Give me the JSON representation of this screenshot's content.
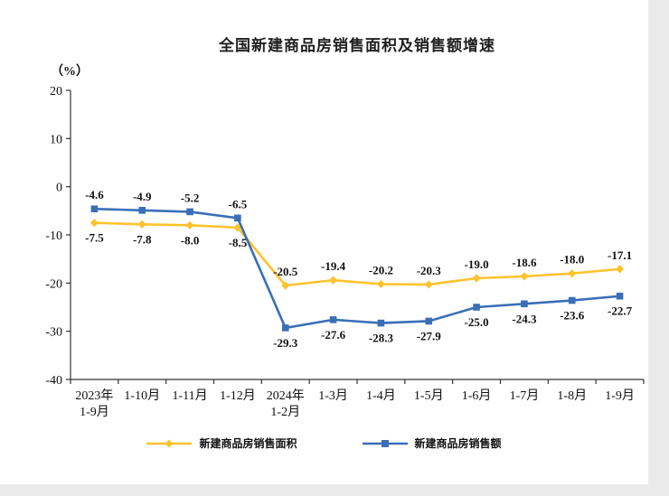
{
  "chart_data": {
    "type": "line",
    "title": "全国新建商品房销售面积及销售额增速",
    "unit_label": "（%）",
    "categories": [
      "2023年\n1-9月",
      "1-10月",
      "1-11月",
      "1-12月",
      "2024年\n1-2月",
      "1-3月",
      "1-4月",
      "1-5月",
      "1-6月",
      "1-7月",
      "1-8月",
      "1-9月"
    ],
    "series": [
      {
        "name": "新建商品房销售面积",
        "color": "#FDC32E",
        "marker": "diamond",
        "values": [
          -7.5,
          -7.8,
          -8.0,
          -8.5,
          -20.5,
          -19.4,
          -20.2,
          -20.3,
          -19.0,
          -18.6,
          -18.0,
          -17.1
        ]
      },
      {
        "name": "新建商品房销售额",
        "color": "#3A6FB7",
        "marker": "square",
        "values": [
          -4.6,
          -4.9,
          -5.2,
          -6.5,
          -29.3,
          -27.6,
          -28.3,
          -27.9,
          -25.0,
          -24.3,
          -23.6,
          -22.7
        ]
      }
    ],
    "ylim": [
      -40,
      20
    ],
    "yticks": [
      20,
      10,
      0,
      -10,
      -20,
      -30,
      -40
    ],
    "grid": false,
    "legend_position": "bottom",
    "label_switch_index": 4,
    "axis_color": "#333333",
    "text_color": "#111111"
  }
}
